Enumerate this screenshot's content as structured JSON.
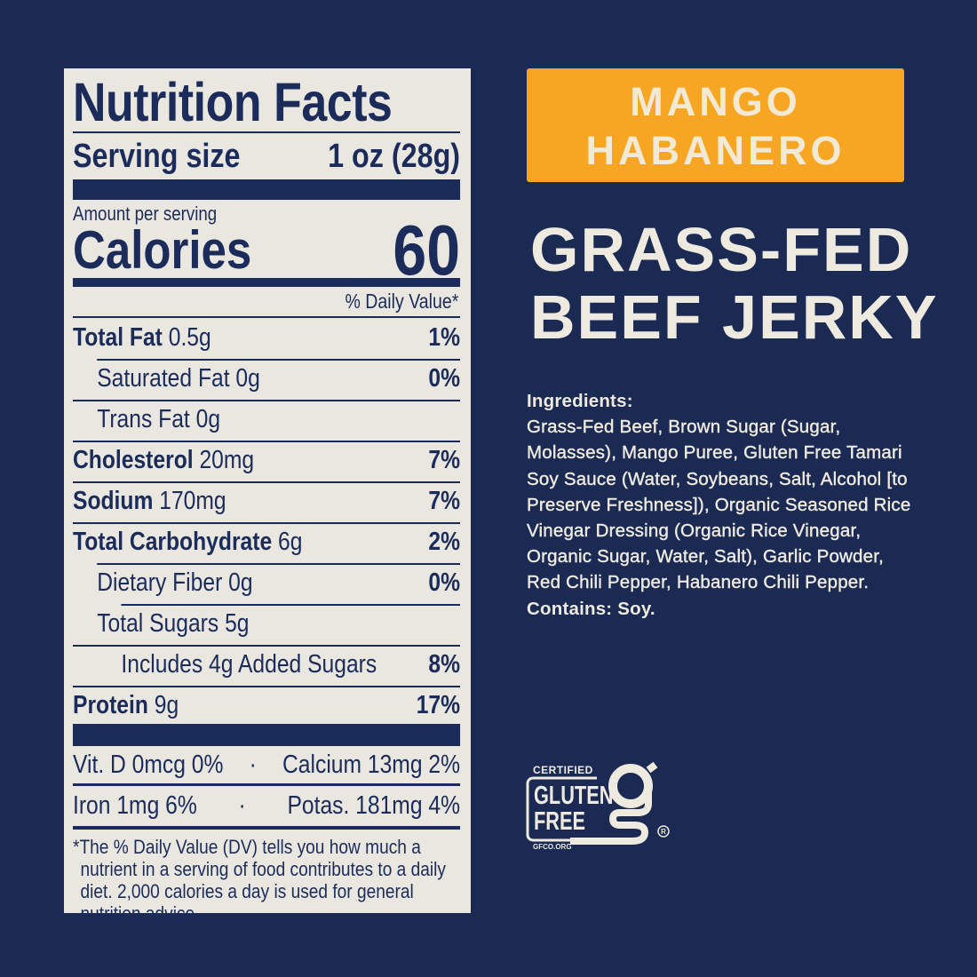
{
  "colors": {
    "background": "#1b2a52",
    "label": "#e9e7e0",
    "accent": "#f6a623"
  },
  "nutrition": {
    "title": "Nutrition Facts",
    "serving_label": "Serving size",
    "serving_value": "1 oz (28g)",
    "amount_per_serving": "Amount per serving",
    "calories_label": "Calories",
    "calories_value": "60",
    "dv_header": "% Daily Value*",
    "rows": [
      {
        "name": "Total Fat",
        "amount": "0.5g",
        "dv": "1%"
      },
      {
        "name": "Saturated Fat",
        "amount": "0g",
        "dv": "0%"
      },
      {
        "name": "Trans Fat",
        "amount": "0g",
        "dv": ""
      },
      {
        "name": "Cholesterol",
        "amount": "20mg",
        "dv": "7%"
      },
      {
        "name": "Sodium",
        "amount": "170mg",
        "dv": "7%"
      },
      {
        "name": "Total Carbohydrate",
        "amount": "6g",
        "dv": "2%"
      },
      {
        "name": "Dietary Fiber",
        "amount": "0g",
        "dv": "0%"
      },
      {
        "name": "Total Sugars",
        "amount": "5g",
        "dv": ""
      },
      {
        "name": "Includes 4g Added Sugars",
        "amount": "",
        "dv": "8%"
      },
      {
        "name": "Protein",
        "amount": "9g",
        "dv": "17%"
      }
    ],
    "vitamins": [
      {
        "left": "Vit. D 0mcg 0%",
        "right": "Calcium 13mg 2%"
      },
      {
        "left": "Iron 1mg 6%",
        "right": "Potas. 181mg 4%"
      }
    ],
    "separator": "·",
    "footnote": "*The % Daily Value (DV) tells you how much a nutrient in a serving of food contributes to a daily diet. 2,000 calories a day is used for general nutrition advice."
  },
  "flavor": {
    "line1": "MANGO",
    "line2": "HABANERO"
  },
  "product": {
    "line1": "GRASS-FED",
    "line2": "BEEF JERKY"
  },
  "ingredients": {
    "title": "Ingredients:",
    "text": "Grass-Fed Beef, Brown Sugar (Sugar, Molasses), Mango Puree, Gluten Free Tamari Soy Sauce (Water, Soybeans, Salt, Alcohol [to Preserve Freshness]), Organic Seasoned Rice Vinegar Dressing (Organic Rice Vinegar, Organic Sugar, Water, Salt), Garlic Powder, Red Chili Pepper, Habanero Chili Pepper.",
    "contains": "Contains: Soy."
  },
  "certification": {
    "top": "CERTIFIED",
    "line1": "GLUTEN",
    "line2": "FREE",
    "url": "GFCO.ORG",
    "icon": "gluten-free-g-logo"
  }
}
